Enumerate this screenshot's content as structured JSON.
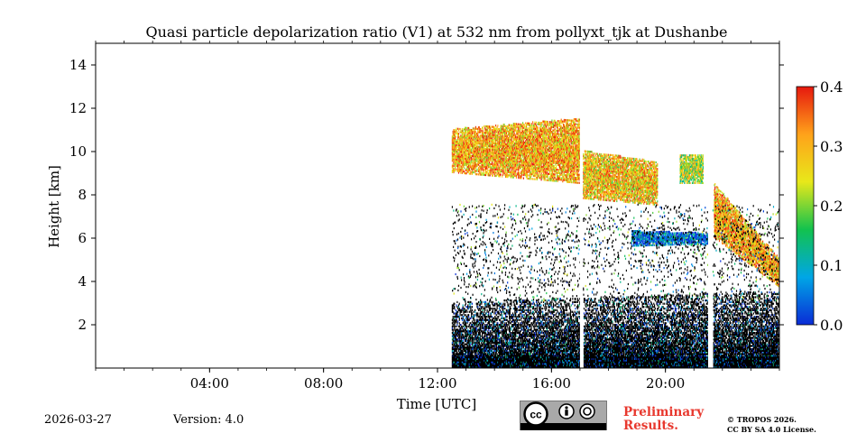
{
  "chart_data": {
    "type": "heatmap",
    "title": "Quasi particle depolarization ratio (V1) at 532 nm from pollyxt_tjk at Dushanbe",
    "xlabel": "Time [UTC]",
    "ylabel": "Height [km]",
    "x_ticks": [
      {
        "value": 4,
        "label": "04:00"
      },
      {
        "value": 8,
        "label": "08:00"
      },
      {
        "value": 12,
        "label": "12:00"
      },
      {
        "value": 16,
        "label": "16:00"
      },
      {
        "value": 20,
        "label": "20:00"
      }
    ],
    "xlim": [
      0,
      24
    ],
    "y_ticks": [
      {
        "value": 2,
        "label": "2"
      },
      {
        "value": 4,
        "label": "4"
      },
      {
        "value": 6,
        "label": "6"
      },
      {
        "value": 8,
        "label": "8"
      },
      {
        "value": 10,
        "label": "10"
      },
      {
        "value": 12,
        "label": "12"
      },
      {
        "value": 14,
        "label": "14"
      }
    ],
    "ylim": [
      0,
      15
    ],
    "colorbar": {
      "range": [
        0.0,
        0.4
      ],
      "ticks": [
        {
          "value": 0.0,
          "label": "0.0"
        },
        {
          "value": 0.1,
          "label": "0.1"
        },
        {
          "value": 0.2,
          "label": "0.2"
        },
        {
          "value": 0.3,
          "label": "0.3"
        },
        {
          "value": 0.4,
          "label": "0.4"
        }
      ],
      "colors": [
        "#0a2bd6",
        "#00a6e6",
        "#12c24e",
        "#e8e81a",
        "#ffa21a",
        "#e6180e"
      ]
    },
    "measurement_start": 12.5,
    "gaps": [
      [
        17.0,
        17.1
      ],
      [
        21.5,
        21.65
      ]
    ],
    "layers": [
      {
        "name": "cirrus",
        "t_start": 12.5,
        "t_end": 17.0,
        "base_km_start": 9.0,
        "base_km_end": 8.5,
        "top_km_start": 11.0,
        "top_km_end": 11.5,
        "depol_mean": 0.3
      },
      {
        "name": "cirrus",
        "t_start": 17.1,
        "t_end": 19.7,
        "base_km_start": 7.8,
        "base_km_end": 7.5,
        "top_km_start": 10.0,
        "top_km_end": 9.5,
        "depol_mean": 0.28
      },
      {
        "name": "cirrus",
        "t_start": 20.5,
        "t_end": 21.3,
        "base_km_start": 8.5,
        "base_km_end": 8.5,
        "top_km_start": 9.8,
        "top_km_end": 9.8,
        "depol_mean": 0.22
      },
      {
        "name": "cloud",
        "t_start": 18.8,
        "t_end": 21.5,
        "base_km_start": 5.6,
        "base_km_end": 5.7,
        "top_km_start": 6.3,
        "top_km_end": 6.2,
        "depol_mean": 0.05
      },
      {
        "name": "descending cloud",
        "t_start": 21.7,
        "t_end": 24.0,
        "base_km_start": 6.0,
        "base_km_end": 3.7,
        "top_km_start": 8.5,
        "top_km_end": 5.0,
        "depol_mean": 0.3
      },
      {
        "name": "boundary layer",
        "t_start": 12.5,
        "t_end": 24.0,
        "base_km_start": 0.0,
        "base_km_end": 0.0,
        "top_km_start": 3.0,
        "top_km_end": 3.5,
        "depol_mean": 0.05
      }
    ]
  },
  "footer": {
    "date": "2026-03-27",
    "version": "Version: 4.0",
    "preliminary_line1": "Preliminary",
    "preliminary_line2": "Results.",
    "copyright_line1": "© TROPOS 2026.",
    "copyright_line2": "CC BY SA 4.0 License.",
    "cc_by": "BY",
    "cc_sa": "SA"
  }
}
